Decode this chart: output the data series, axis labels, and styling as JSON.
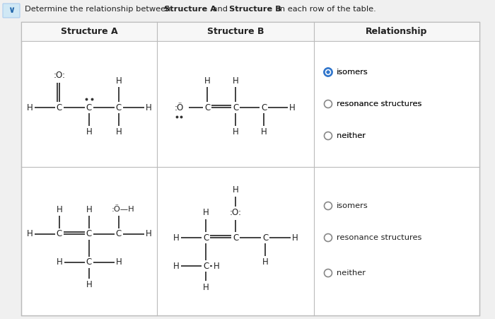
{
  "bg_color": "#f0f0f0",
  "table_bg": "#ffffff",
  "cell_bg": "#f7f7f7",
  "header_bg": "#f0f0f0",
  "border_color": "#bbbbbb",
  "text_color": "#222222",
  "col_headers": [
    "Structure A",
    "Structure B",
    "Relationship"
  ],
  "row1_rel": [
    "isomers",
    "resonance structures",
    "neither"
  ],
  "row2_rel": [
    "isomers",
    "resonance structures",
    "neither"
  ],
  "title_normal": "Determine the relationship between ",
  "title_bold1": "Structure A",
  "title_mid": " and ",
  "title_bold2": "Structure B",
  "title_end": " in each row of the table."
}
